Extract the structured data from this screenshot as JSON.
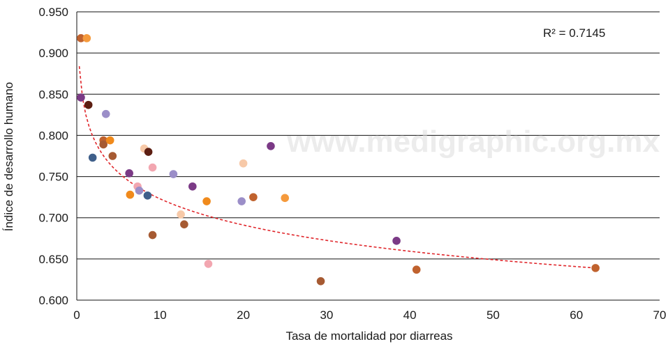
{
  "chart_data": {
    "type": "scatter",
    "title": "",
    "xlabel": "Tasa de mortalidad por diarreas",
    "ylabel": "Índice de desarrollo humano",
    "xlim": [
      0,
      70
    ],
    "ylim": [
      0.6,
      0.95
    ],
    "x_ticks": [
      "0",
      "10",
      "20",
      "30",
      "40",
      "50",
      "60",
      "70"
    ],
    "y_ticks": [
      "0.600",
      "0.650",
      "0.700",
      "0.750",
      "0.800",
      "0.850",
      "0.900",
      "0.950"
    ],
    "grid": "horizontal",
    "annotation": "R² = 0.7145",
    "watermark": "www.medigraphic.org.mx",
    "trendline": {
      "type": "logarithmic",
      "style": "dashed",
      "color": "#e0262b",
      "x_range": [
        0.3,
        62.3
      ],
      "points": [
        [
          0.3,
          0.884
        ],
        [
          62.3,
          0.639
        ]
      ]
    },
    "points": [
      {
        "x": 0.5,
        "y": 0.918,
        "color": "#c0622e"
      },
      {
        "x": 1.2,
        "y": 0.918,
        "color": "#f59a3c"
      },
      {
        "x": 0.5,
        "y": 0.846,
        "color": "#7b3a86"
      },
      {
        "x": 1.4,
        "y": 0.837,
        "color": "#5c1e12"
      },
      {
        "x": 3.5,
        "y": 0.826,
        "color": "#9b8ec8"
      },
      {
        "x": 1.9,
        "y": 0.773,
        "color": "#3f5f8a"
      },
      {
        "x": 3.2,
        "y": 0.794,
        "color": "#c0622e"
      },
      {
        "x": 3.2,
        "y": 0.789,
        "color": "#a65a32"
      },
      {
        "x": 4.0,
        "y": 0.794,
        "color": "#f08a1c"
      },
      {
        "x": 4.3,
        "y": 0.775,
        "color": "#a65a32"
      },
      {
        "x": 6.3,
        "y": 0.754,
        "color": "#7b3a86"
      },
      {
        "x": 6.4,
        "y": 0.728,
        "color": "#f08a1c"
      },
      {
        "x": 7.3,
        "y": 0.738,
        "color": "#f2a6b0"
      },
      {
        "x": 7.5,
        "y": 0.733,
        "color": "#9b8ec8"
      },
      {
        "x": 8.1,
        "y": 0.784,
        "color": "#f7c9a8"
      },
      {
        "x": 8.6,
        "y": 0.78,
        "color": "#5c1e12"
      },
      {
        "x": 8.5,
        "y": 0.727,
        "color": "#3f5f8a"
      },
      {
        "x": 9.1,
        "y": 0.761,
        "color": "#f2a6b0"
      },
      {
        "x": 9.1,
        "y": 0.679,
        "color": "#a65a32"
      },
      {
        "x": 11.6,
        "y": 0.753,
        "color": "#9b8ec8"
      },
      {
        "x": 12.5,
        "y": 0.704,
        "color": "#f7c9a8"
      },
      {
        "x": 12.9,
        "y": 0.692,
        "color": "#a65a32"
      },
      {
        "x": 13.9,
        "y": 0.738,
        "color": "#7b3a86"
      },
      {
        "x": 15.6,
        "y": 0.72,
        "color": "#f08a1c"
      },
      {
        "x": 15.8,
        "y": 0.644,
        "color": "#f2a6b0"
      },
      {
        "x": 19.8,
        "y": 0.72,
        "color": "#9b8ec8"
      },
      {
        "x": 20.0,
        "y": 0.766,
        "color": "#f7c9a8"
      },
      {
        "x": 21.2,
        "y": 0.725,
        "color": "#c0622e"
      },
      {
        "x": 23.3,
        "y": 0.787,
        "color": "#7b3a86"
      },
      {
        "x": 25.0,
        "y": 0.724,
        "color": "#f59a3c"
      },
      {
        "x": 29.3,
        "y": 0.623,
        "color": "#a65a32"
      },
      {
        "x": 38.4,
        "y": 0.672,
        "color": "#7b3a86"
      },
      {
        "x": 40.8,
        "y": 0.637,
        "color": "#c0622e"
      },
      {
        "x": 62.3,
        "y": 0.639,
        "color": "#c0622e"
      }
    ]
  }
}
